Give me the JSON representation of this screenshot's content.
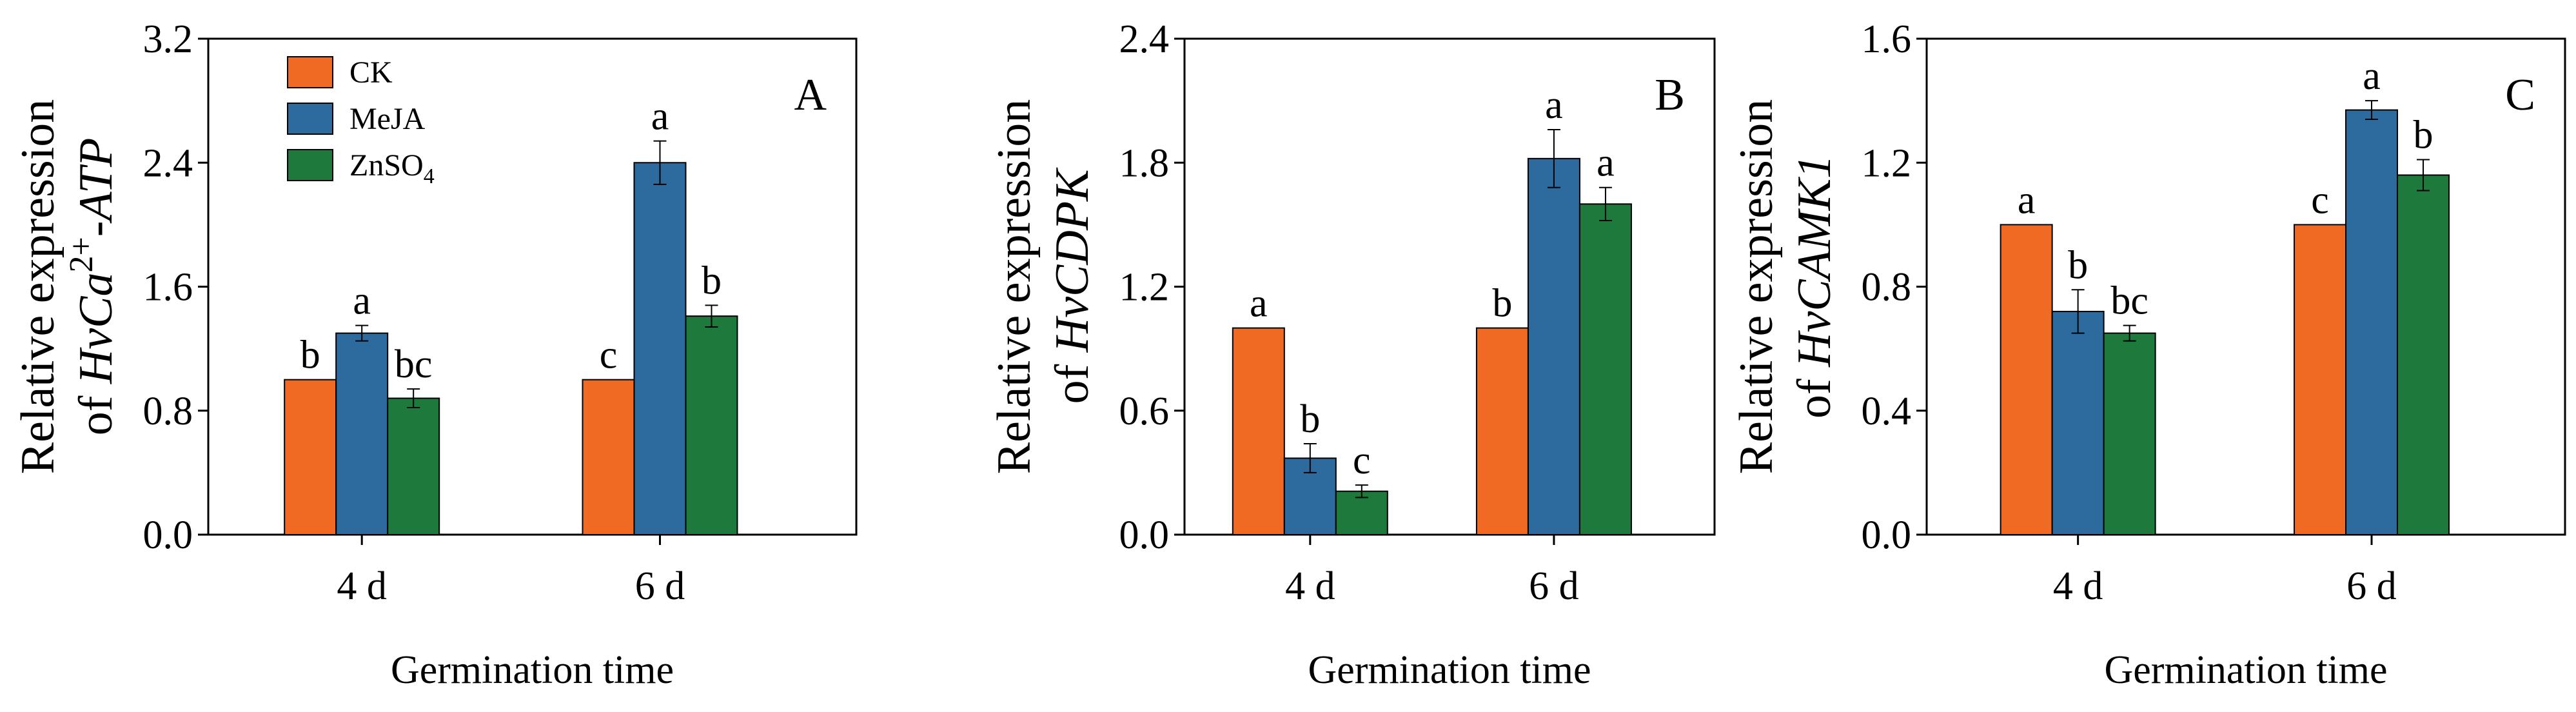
{
  "colors": {
    "CK": "#F06A24",
    "MeJA": "#2D6A9E",
    "ZnSO4": "#1E7A3C"
  },
  "legend": [
    {
      "key": "CK",
      "label": "CK",
      "sub": ""
    },
    {
      "key": "MeJA",
      "label": "MeJA",
      "sub": ""
    },
    {
      "key": "ZnSO4",
      "label": "ZnSO",
      "sub": "4"
    }
  ],
  "xlabel": "Germination  time",
  "ylabel_line1": "Relative expression",
  "chart_data": [
    {
      "type": "bar",
      "panel": "A",
      "ylabel_prefix": "of ",
      "gene_label": "HvCa",
      "gene_sup": "2+",
      "gene_suffix": "-ATP",
      "ylabel": "Relative expression of HvCa2+-ATP",
      "xlabel": "Germination  time",
      "categories": [
        "4 d",
        "6 d"
      ],
      "ylim": [
        0,
        3.2
      ],
      "yticks": [
        "0.0",
        "0.8",
        "1.6",
        "2.4",
        "3.2"
      ],
      "series": [
        {
          "name": "CK",
          "values": [
            1.0,
            1.0
          ],
          "errors": [
            0,
            0
          ],
          "letters": [
            "b",
            "c"
          ]
        },
        {
          "name": "MeJA",
          "values": [
            1.3,
            2.4
          ],
          "errors": [
            0.05,
            0.14
          ],
          "letters": [
            "a",
            "a"
          ]
        },
        {
          "name": "ZnSO4",
          "values": [
            0.88,
            1.41
          ],
          "errors": [
            0.06,
            0.07
          ],
          "letters": [
            "bc",
            "b"
          ]
        }
      ]
    },
    {
      "type": "bar",
      "panel": "B",
      "ylabel_prefix": "of ",
      "gene_label": "HvCDPK",
      "gene_sup": "",
      "gene_suffix": "",
      "ylabel": "Relative expression of HvCDPK",
      "xlabel": "Germination  time",
      "categories": [
        "4 d",
        "6 d"
      ],
      "ylim": [
        0,
        2.4
      ],
      "yticks": [
        "0.0",
        "0.6",
        "1.2",
        "1.8",
        "2.4"
      ],
      "series": [
        {
          "name": "CK",
          "values": [
            1.0,
            1.0
          ],
          "errors": [
            0,
            0
          ],
          "letters": [
            "a",
            "b"
          ]
        },
        {
          "name": "MeJA",
          "values": [
            0.37,
            1.82
          ],
          "errors": [
            0.07,
            0.14
          ],
          "letters": [
            "b",
            "a"
          ]
        },
        {
          "name": "ZnSO4",
          "values": [
            0.21,
            1.6
          ],
          "errors": [
            0.03,
            0.08
          ],
          "letters": [
            "c",
            "a"
          ]
        }
      ]
    },
    {
      "type": "bar",
      "panel": "C",
      "ylabel_prefix": "of ",
      "gene_label": "HvCAMK1",
      "gene_sup": "",
      "gene_suffix": "",
      "ylabel": "Relative expression of HvCAMK1",
      "xlabel": "Germination  time",
      "categories": [
        "4 d",
        "6 d"
      ],
      "ylim": [
        0,
        1.6
      ],
      "yticks": [
        "0.0",
        "0.4",
        "0.8",
        "1.2",
        "1.6"
      ],
      "series": [
        {
          "name": "CK",
          "values": [
            1.0,
            1.0
          ],
          "errors": [
            0,
            0
          ],
          "letters": [
            "a",
            "c"
          ]
        },
        {
          "name": "MeJA",
          "values": [
            0.72,
            1.37
          ],
          "errors": [
            0.07,
            0.03
          ],
          "letters": [
            "b",
            "a"
          ]
        },
        {
          "name": "ZnSO4",
          "values": [
            0.65,
            1.16
          ],
          "errors": [
            0.025,
            0.05
          ],
          "letters": [
            "bc",
            "b"
          ]
        }
      ]
    }
  ]
}
